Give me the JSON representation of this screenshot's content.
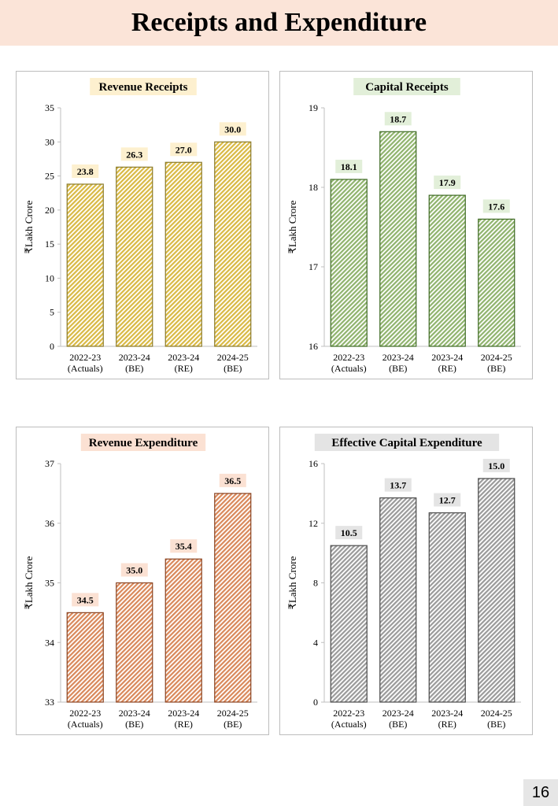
{
  "page": {
    "title": "Receipts and Expenditure",
    "page_number": "16"
  },
  "chart_data": [
    {
      "type": "bar",
      "title": "Revenue Receipts",
      "ylabel": "₹Lakh Crore",
      "categories": [
        [
          "2022-23",
          "(Actuals)"
        ],
        [
          "2023-24",
          "(BE)"
        ],
        [
          "2023-24",
          "(RE)"
        ],
        [
          "2024-25",
          "(BE)"
        ]
      ],
      "values": [
        23.8,
        26.3,
        27.0,
        30.0
      ],
      "value_labels": [
        "23.8",
        "26.3",
        "27.0",
        "30.0"
      ],
      "ylim": [
        0,
        35
      ],
      "yticks": [
        0,
        5,
        10,
        15,
        20,
        25,
        30,
        35
      ],
      "colors": {
        "fill": "#d9b943",
        "stroke": "#8a7a28",
        "label_bg": "#fdf0cf"
      }
    },
    {
      "type": "bar",
      "title": "Capital Receipts",
      "ylabel": "₹Lakh Crore",
      "categories": [
        [
          "2022-23",
          "(Actuals)"
        ],
        [
          "2023-24",
          "(BE)"
        ],
        [
          "2023-24",
          "(RE)"
        ],
        [
          "2024-25",
          "(BE)"
        ]
      ],
      "values": [
        18.1,
        18.7,
        17.9,
        17.6
      ],
      "value_labels": [
        "18.1",
        "18.7",
        "17.9",
        "17.6"
      ],
      "ylim": [
        16,
        19
      ],
      "yticks": [
        16,
        17,
        18,
        19
      ],
      "colors": {
        "fill": "#8fb36d",
        "stroke": "#3e6a23",
        "label_bg": "#e2efd9"
      }
    },
    {
      "type": "bar",
      "title": "Revenue Expenditure",
      "ylabel": "₹Lakh Crore",
      "categories": [
        [
          "2022-23",
          "(Actuals)"
        ],
        [
          "2023-24",
          "(BE)"
        ],
        [
          "2023-24",
          "(RE)"
        ],
        [
          "2024-25",
          "(BE)"
        ]
      ],
      "values": [
        34.5,
        35.0,
        35.4,
        36.5
      ],
      "value_labels": [
        "34.5",
        "35.0",
        "35.4",
        "36.5"
      ],
      "ylim": [
        33,
        37
      ],
      "yticks": [
        33,
        34,
        35,
        36,
        37
      ],
      "colors": {
        "fill": "#d9885a",
        "stroke": "#8a4422",
        "label_bg": "#fbe1d3"
      }
    },
    {
      "type": "bar",
      "title": "Effective Capital Expenditure",
      "ylabel": "₹Lakh Crore",
      "categories": [
        [
          "2022-23",
          "(Actuals)"
        ],
        [
          "2023-24",
          "(BE)"
        ],
        [
          "2023-24",
          "(RE)"
        ],
        [
          "2024-25",
          "(BE)"
        ]
      ],
      "values": [
        10.5,
        13.7,
        12.7,
        15.0
      ],
      "value_labels": [
        "10.5",
        "13.7",
        "12.7",
        "15.0"
      ],
      "ylim": [
        0,
        16
      ],
      "yticks": [
        0,
        4,
        8,
        12,
        16
      ],
      "colors": {
        "fill": "#9a9a9a",
        "stroke": "#4a4a4a",
        "label_bg": "#e4e4e4"
      }
    }
  ]
}
